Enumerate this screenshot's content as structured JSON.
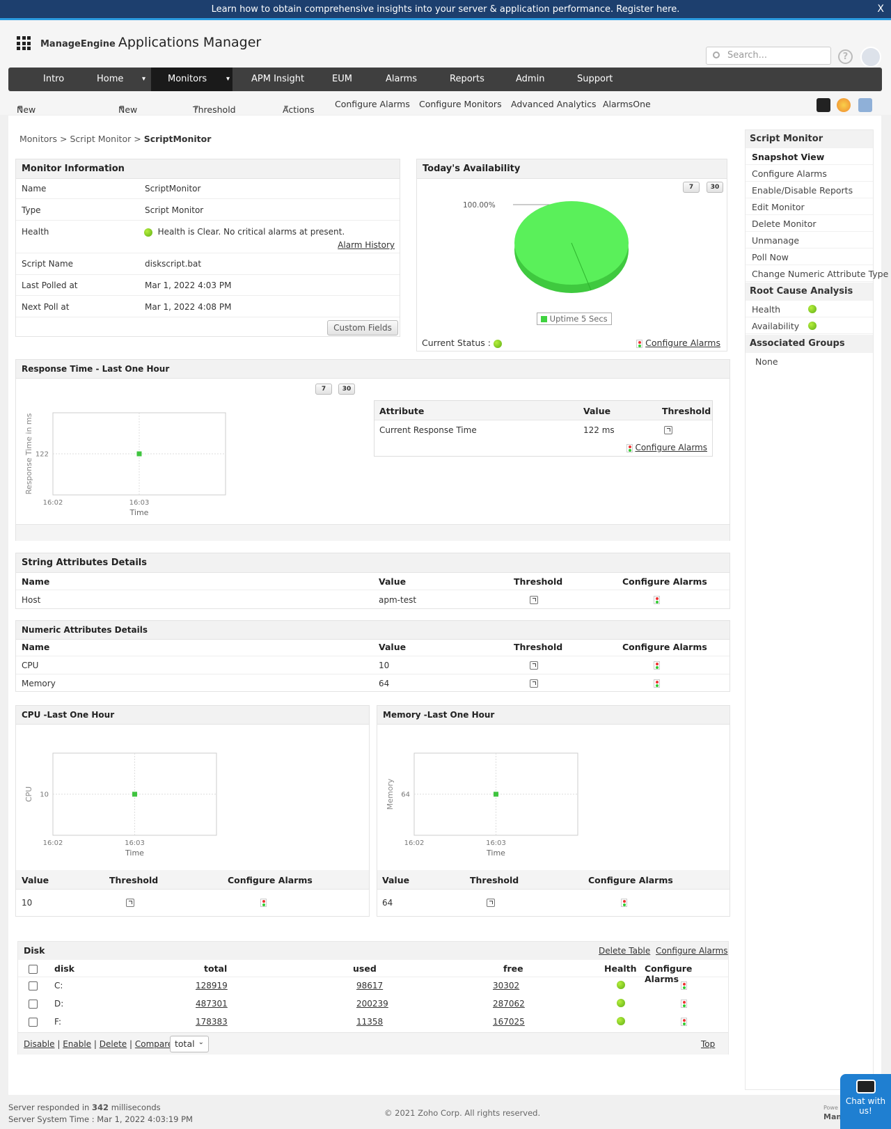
{
  "banner": {
    "text": "Learn how to obtain comprehensive insights into your server & application performance. Register here.",
    "close": "X"
  },
  "header": {
    "brand": "ManageEngine",
    "app": "Applications Manager",
    "search_placeholder": "Search...",
    "help": "?"
  },
  "nav": {
    "items": [
      "Intro",
      "Home",
      "Monitors",
      "APM Insight",
      "EUM",
      "Alarms",
      "Reports",
      "Admin",
      "Support"
    ],
    "active": "Monitors"
  },
  "subnav": {
    "items": [
      "New Monitor Group",
      "New Monitor",
      "Threshold Profile",
      "Actions",
      "Configure Alarms",
      "Configure Monitors",
      "Advanced Analytics",
      "AlarmsOne"
    ]
  },
  "breadcrumb": {
    "a": "Monitors",
    "b": "Script Monitor",
    "c": "ScriptMonitor",
    "sep": ">"
  },
  "monitor_info": {
    "title": "Monitor Information",
    "rows": [
      {
        "k": "Name",
        "v": "ScriptMonitor"
      },
      {
        "k": "Type",
        "v": "Script Monitor"
      },
      {
        "k": "Health",
        "v": "Health is Clear. No critical alarms at present."
      },
      {
        "k": "Script Name",
        "v": "diskscript.bat"
      },
      {
        "k": "Last Polled at",
        "v": "Mar 1, 2022 4:03 PM"
      },
      {
        "k": "Next Poll at",
        "v": "Mar 1, 2022 4:08 PM"
      }
    ],
    "alarm_history": "Alarm History",
    "custom_fields": "Custom Fields"
  },
  "availability": {
    "title": "Today's Availability",
    "btn7": "7",
    "btn30": "30",
    "pct": "100.00%",
    "legend": "Uptime 5 Secs",
    "status_label": "Current Status :",
    "configure": "Configure Alarms",
    "uptime_fraction": 1.0
  },
  "response": {
    "title": "Response Time - Last One Hour",
    "btn7": "7",
    "btn30": "30",
    "table_headers": [
      "Attribute",
      "Value",
      "Threshold"
    ],
    "attr": "Current Response Time",
    "value": "122 ms",
    "configure": "Configure Alarms"
  },
  "string_attrs": {
    "title": "String Attributes Details",
    "headers": [
      "Name",
      "Value",
      "Threshold",
      "Configure Alarms"
    ],
    "rows": [
      {
        "name": "Host",
        "value": "apm-test"
      }
    ]
  },
  "numeric_attrs": {
    "title": "Numeric Attributes Details",
    "headers": [
      "Name",
      "Value",
      "Threshold",
      "Configure Alarms"
    ],
    "rows": [
      {
        "name": "CPU",
        "value": "10"
      },
      {
        "name": "Memory",
        "value": "64"
      }
    ]
  },
  "cpu": {
    "title": "CPU -Last One Hour",
    "headers": [
      "Value",
      "Threshold",
      "Configure Alarms"
    ],
    "value": "10"
  },
  "memory": {
    "title": "Memory -Last One Hour",
    "headers": [
      "Value",
      "Threshold",
      "Configure Alarms"
    ],
    "value": "64"
  },
  "chart_data": [
    {
      "type": "scatter",
      "title": "",
      "xlabel": "Time",
      "ylabel": "Response Time in ms",
      "x": [
        "16:03"
      ],
      "y": [
        122
      ],
      "xticks": [
        "16:02",
        "16:03"
      ],
      "yticks": [
        122
      ],
      "color": "#3fc43f"
    },
    {
      "type": "scatter",
      "title": "",
      "xlabel": "Time",
      "ylabel": "CPU",
      "x": [
        "16:03"
      ],
      "y": [
        10
      ],
      "xticks": [
        "16:02",
        "16:03"
      ],
      "yticks": [
        10
      ],
      "color": "#3fc43f"
    },
    {
      "type": "scatter",
      "title": "",
      "xlabel": "Time",
      "ylabel": "Memory",
      "x": [
        "16:03"
      ],
      "y": [
        64
      ],
      "xticks": [
        "16:02",
        "16:03"
      ],
      "yticks": [
        64
      ],
      "color": "#3fc43f"
    },
    {
      "type": "pie",
      "title": "Today's Availability",
      "categories": [
        "Uptime 5 Secs"
      ],
      "values": [
        100.0
      ],
      "color": "#55ee55"
    }
  ],
  "disk": {
    "title": "Disk",
    "delete_table": "Delete Table",
    "configure": "Configure Alarms",
    "headers": [
      "disk",
      "total",
      "used",
      "free",
      "Health",
      "Configure Alarms"
    ],
    "rows": [
      {
        "disk": "C:",
        "total": "128919",
        "used": "98617",
        "free": "30302"
      },
      {
        "disk": "D:",
        "total": "487301",
        "used": "200239",
        "free": "287062"
      },
      {
        "disk": "F:",
        "total": "178383",
        "used": "11358",
        "free": "167025"
      }
    ],
    "actions": [
      "Disable",
      "Enable",
      "Delete",
      "Compare"
    ],
    "select": "total",
    "top": "Top"
  },
  "sidebar": {
    "title": "Script Monitor",
    "items": [
      "Snapshot View",
      "Configure Alarms",
      "Enable/Disable Reports",
      "Edit Monitor",
      "Delete Monitor",
      "Unmanage",
      "Poll Now",
      "Change Numeric Attribute Type"
    ],
    "rca_title": "Root Cause Analysis",
    "rca": [
      "Health",
      "Availability"
    ],
    "groups_title": "Associated Groups",
    "groups": "None"
  },
  "footer": {
    "l1a": "Server responded in",
    "ms": "342",
    "l1b": "milliseconds",
    "l2": "Server System Time : Mar 1, 2022 4:03:19 PM",
    "copy": "© 2021 Zoho Corp.   All rights reserved.",
    "powered": "Powe",
    "mana": "Mana"
  },
  "chat": {
    "line1": "Chat with",
    "line2": "us!"
  }
}
